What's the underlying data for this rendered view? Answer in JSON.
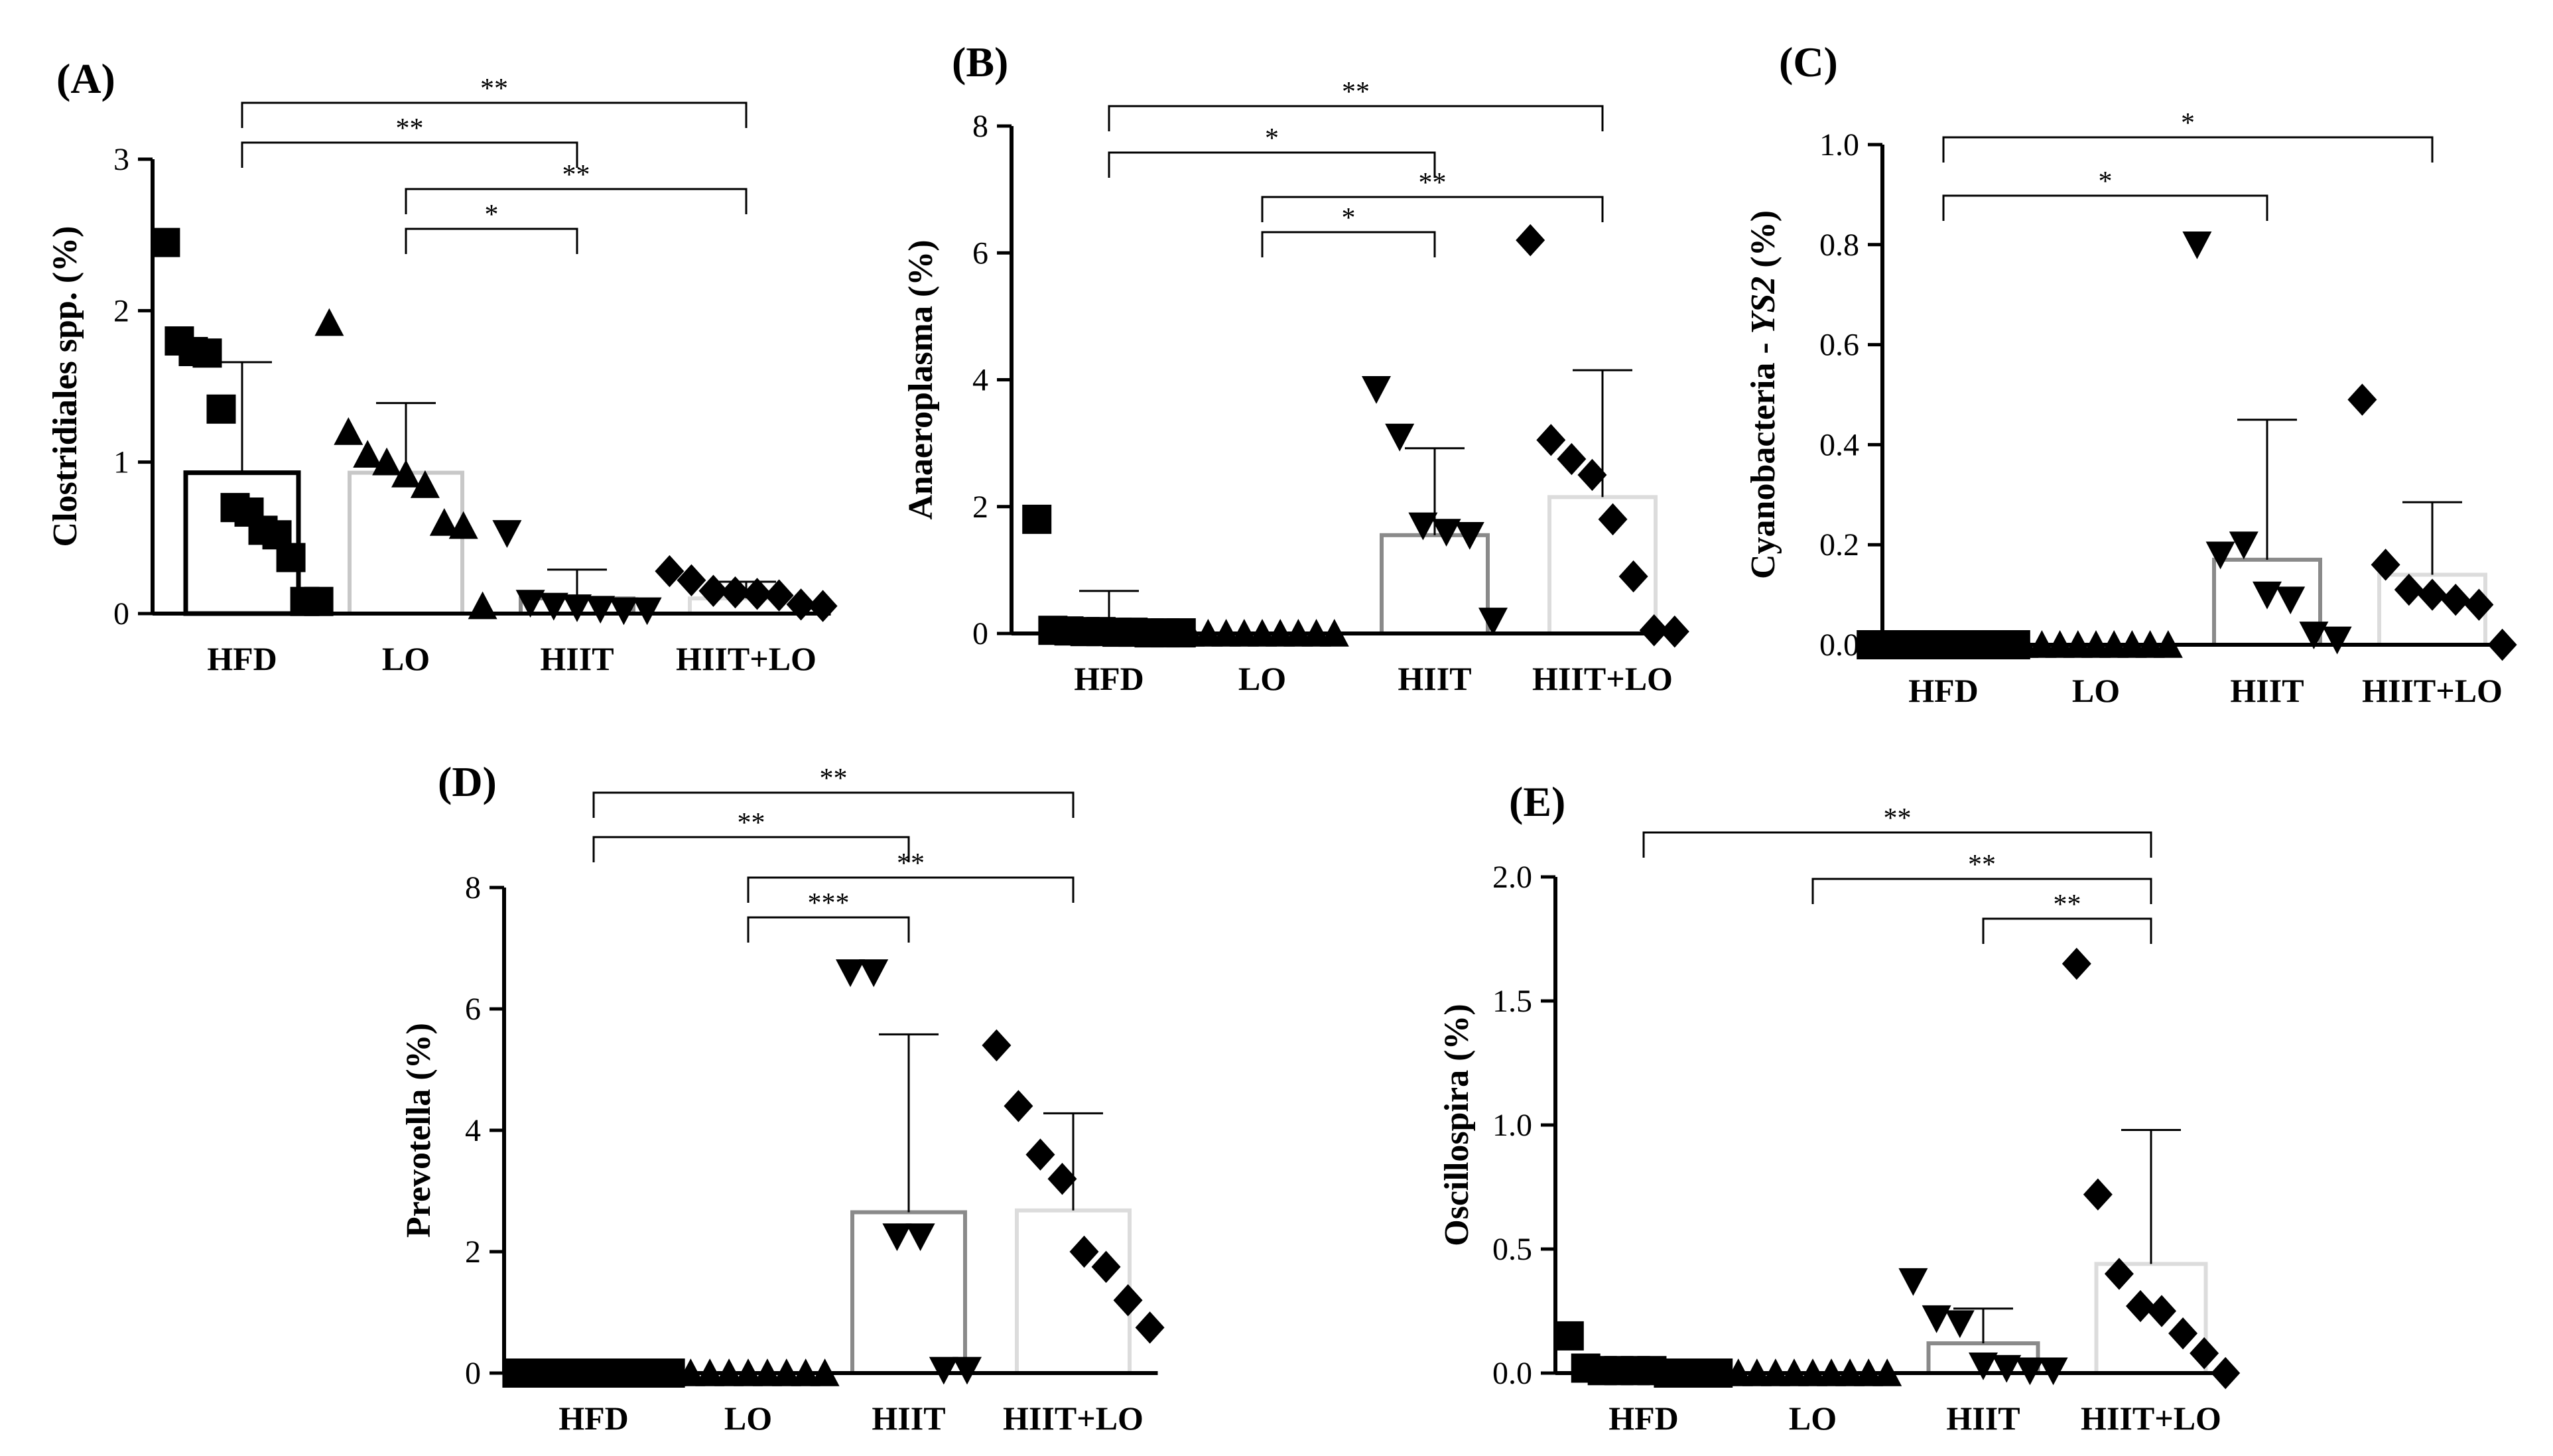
{
  "colors": {
    "axis": "#000000",
    "HFD": "#000000",
    "LO": "#c8c8c8",
    "HIIT": "#8a8a8a",
    "HIIT+LO": "#dcdcdc"
  },
  "chart_data": [
    {
      "id": "A",
      "type": "bar",
      "panel_label": "(A)",
      "ylabel": "Clostridiales spp. (%)",
      "ylabel_italic_part": "",
      "categories": [
        "HFD",
        "LO",
        "HIIT",
        "HIIT+LO"
      ],
      "markers": [
        "square",
        "triangle-up",
        "triangle-down",
        "diamond"
      ],
      "ylim": [
        0,
        3
      ],
      "yticks": [
        0,
        1,
        2,
        3
      ],
      "ytick_labels": [
        "0",
        "1",
        "2",
        "3"
      ],
      "means": [
        0.93,
        0.93,
        0.1,
        0.1
      ],
      "sd": [
        0.73,
        0.46,
        0.19,
        0.11
      ],
      "points": [
        [
          2.45,
          1.8,
          1.73,
          1.72,
          1.35,
          0.7,
          0.67,
          0.55,
          0.52,
          0.37,
          0.08,
          0.08
        ],
        [
          1.92,
          1.2,
          1.05,
          1.0,
          0.92,
          0.85,
          0.6,
          0.58,
          0.05
        ],
        [
          0.53,
          0.07,
          0.05,
          0.04,
          0.03,
          0.02,
          0.02
        ],
        [
          0.28,
          0.22,
          0.15,
          0.14,
          0.13,
          0.12,
          0.06,
          0.05
        ]
      ],
      "significance": [
        {
          "from": 0,
          "to": 3,
          "label": "**"
        },
        {
          "from": 0,
          "to": 2,
          "label": "**"
        },
        {
          "from": 1,
          "to": 3,
          "label": "**"
        },
        {
          "from": 1,
          "to": 2,
          "label": "*"
        }
      ]
    },
    {
      "id": "B",
      "type": "bar",
      "panel_label": "(B)",
      "ylabel": "Anaeroplasma (%)",
      "ylabel_italic_part": "",
      "categories": [
        "HFD",
        "LO",
        "HIIT",
        "HIIT+LO"
      ],
      "markers": [
        "square",
        "triangle-up",
        "triangle-down",
        "diamond"
      ],
      "ylim": [
        0,
        8
      ],
      "yticks": [
        0,
        2,
        4,
        6,
        8
      ],
      "ytick_labels": [
        "0",
        "2",
        "4",
        "6",
        "8"
      ],
      "means": [
        0.15,
        0.0,
        1.55,
        2.15
      ],
      "sd": [
        0.52,
        0.0,
        1.37,
        2.0
      ],
      "points": [
        [
          1.8,
          0.05,
          0.04,
          0.03,
          0.03,
          0.02,
          0.02,
          0.01,
          0.01,
          0.01
        ],
        [
          0,
          0,
          0,
          0,
          0,
          0,
          0,
          0,
          0
        ],
        [
          3.85,
          3.1,
          1.7,
          1.6,
          1.55,
          0.2
        ],
        [
          6.2,
          3.05,
          2.75,
          2.5,
          1.8,
          0.9,
          0.05,
          0.03
        ]
      ],
      "significance": [
        {
          "from": 0,
          "to": 3,
          "label": "**"
        },
        {
          "from": 0,
          "to": 2,
          "label": "*"
        },
        {
          "from": 1,
          "to": 3,
          "label": "**"
        },
        {
          "from": 1,
          "to": 2,
          "label": "*"
        }
      ]
    },
    {
      "id": "C",
      "type": "bar",
      "panel_label": "(C)",
      "ylabel": "Cyanobacteria - ",
      "ylabel_italic_part": "YS2",
      "ylabel_suffix": " (%)",
      "categories": [
        "HFD",
        "LO",
        "HIIT",
        "HIIT+LO"
      ],
      "markers": [
        "square",
        "triangle-up",
        "triangle-down",
        "diamond"
      ],
      "ylim": [
        0,
        1.0
      ],
      "yticks": [
        0.0,
        0.2,
        0.4,
        0.6,
        0.8,
        1.0
      ],
      "ytick_labels": [
        "0.0",
        "0.2",
        "0.4",
        "0.6",
        "0.8",
        "1.0"
      ],
      "means": [
        0.0,
        0.0,
        0.17,
        0.14
      ],
      "sd": [
        0.0,
        0.0,
        0.28,
        0.145
      ],
      "points": [
        [
          0,
          0,
          0,
          0,
          0,
          0,
          0,
          0,
          0,
          0
        ],
        [
          0,
          0,
          0,
          0,
          0,
          0,
          0,
          0,
          0
        ],
        [
          0.8,
          0.18,
          0.2,
          0.1,
          0.09,
          0.02,
          0.01
        ],
        [
          0.49,
          0.16,
          0.11,
          0.1,
          0.09,
          0.08,
          0.0
        ]
      ],
      "significance": [
        {
          "from": 0,
          "to": 3,
          "label": "*"
        },
        {
          "from": 0,
          "to": 2,
          "label": "*"
        }
      ]
    },
    {
      "id": "D",
      "type": "bar",
      "panel_label": "(D)",
      "ylabel": "Prevotella (%)",
      "ylabel_italic_part": "",
      "categories": [
        "HFD",
        "LO",
        "HIIT",
        "HIIT+LO"
      ],
      "markers": [
        "square",
        "triangle-up",
        "triangle-down",
        "diamond"
      ],
      "ylim": [
        0,
        8
      ],
      "yticks": [
        0,
        2,
        4,
        6,
        8
      ],
      "ytick_labels": [
        "0",
        "2",
        "4",
        "6",
        "8"
      ],
      "means": [
        0.0,
        0.0,
        2.65,
        2.68
      ],
      "sd": [
        0.0,
        0.0,
        2.93,
        1.6
      ],
      "points": [
        [
          0,
          0,
          0,
          0,
          0,
          0,
          0,
          0,
          0,
          0
        ],
        [
          0,
          0,
          0,
          0,
          0,
          0,
          0,
          0,
          0
        ],
        [
          6.6,
          6.6,
          2.25,
          2.25,
          0.05,
          0.05
        ],
        [
          5.4,
          4.4,
          3.6,
          3.2,
          2.0,
          1.75,
          1.2,
          0.75
        ]
      ],
      "significance": [
        {
          "from": 0,
          "to": 3,
          "label": "**"
        },
        {
          "from": 0,
          "to": 2,
          "label": "**"
        },
        {
          "from": 1,
          "to": 3,
          "label": "**"
        },
        {
          "from": 1,
          "to": 2,
          "label": "***"
        }
      ]
    },
    {
      "id": "E",
      "type": "bar",
      "panel_label": "(E)",
      "ylabel": "Oscillospira (%)",
      "ylabel_italic_part": "",
      "categories": [
        "HFD",
        "LO",
        "HIIT",
        "HIIT+LO"
      ],
      "markers": [
        "square",
        "triangle-up",
        "triangle-down",
        "diamond"
      ],
      "ylim": [
        0,
        2.0
      ],
      "yticks": [
        0.0,
        0.5,
        1.0,
        1.5,
        2.0
      ],
      "ytick_labels": [
        "0.0",
        "0.5",
        "1.0",
        "1.5",
        "2.0"
      ],
      "means": [
        0.02,
        0.0,
        0.12,
        0.44
      ],
      "sd": [
        0.03,
        0.0,
        0.14,
        0.54
      ],
      "points": [
        [
          0.15,
          0.02,
          0.01,
          0.01,
          0.01,
          0.01,
          0.0,
          0.0,
          0.0,
          0.0
        ],
        [
          0,
          0,
          0,
          0,
          0,
          0,
          0,
          0,
          0
        ],
        [
          0.37,
          0.22,
          0.2,
          0.03,
          0.02,
          0.01,
          0.01
        ],
        [
          1.65,
          0.72,
          0.4,
          0.27,
          0.25,
          0.16,
          0.08,
          0.0
        ]
      ],
      "significance": [
        {
          "from": 0,
          "to": 3,
          "label": "**"
        },
        {
          "from": 1,
          "to": 3,
          "label": "**"
        },
        {
          "from": 2,
          "to": 3,
          "label": "**"
        }
      ]
    }
  ]
}
